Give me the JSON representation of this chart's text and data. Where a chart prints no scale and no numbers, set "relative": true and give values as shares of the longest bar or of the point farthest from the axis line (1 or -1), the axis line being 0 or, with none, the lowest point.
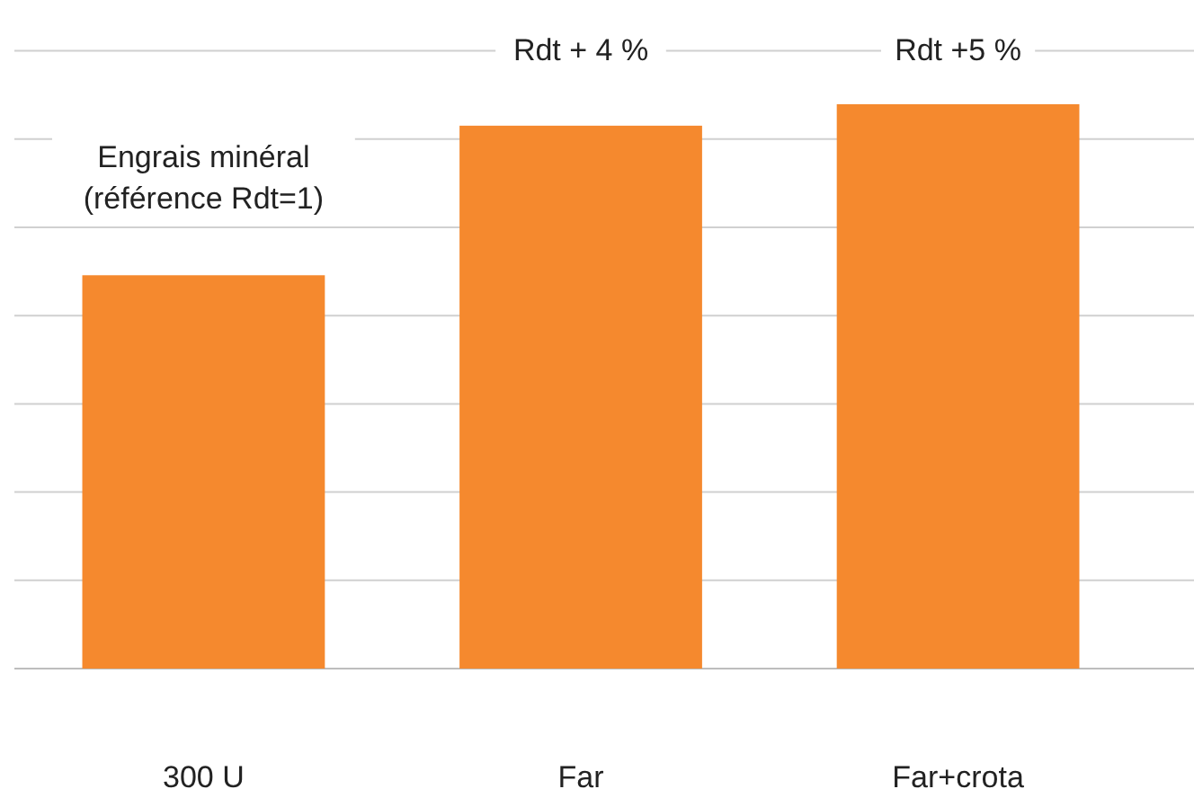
{
  "chart_data": {
    "type": "bar",
    "relative": true,
    "categories": [
      "300 U",
      "Far",
      "Far+crota"
    ],
    "values": [
      0.697,
      0.962,
      1
    ],
    "color": "#f5892e",
    "grid": "y",
    "annotations": [
      "Engrais minéral\n(référence Rdt=1)",
      "Rdt + 4 %",
      "Rdt +5 %"
    ]
  }
}
